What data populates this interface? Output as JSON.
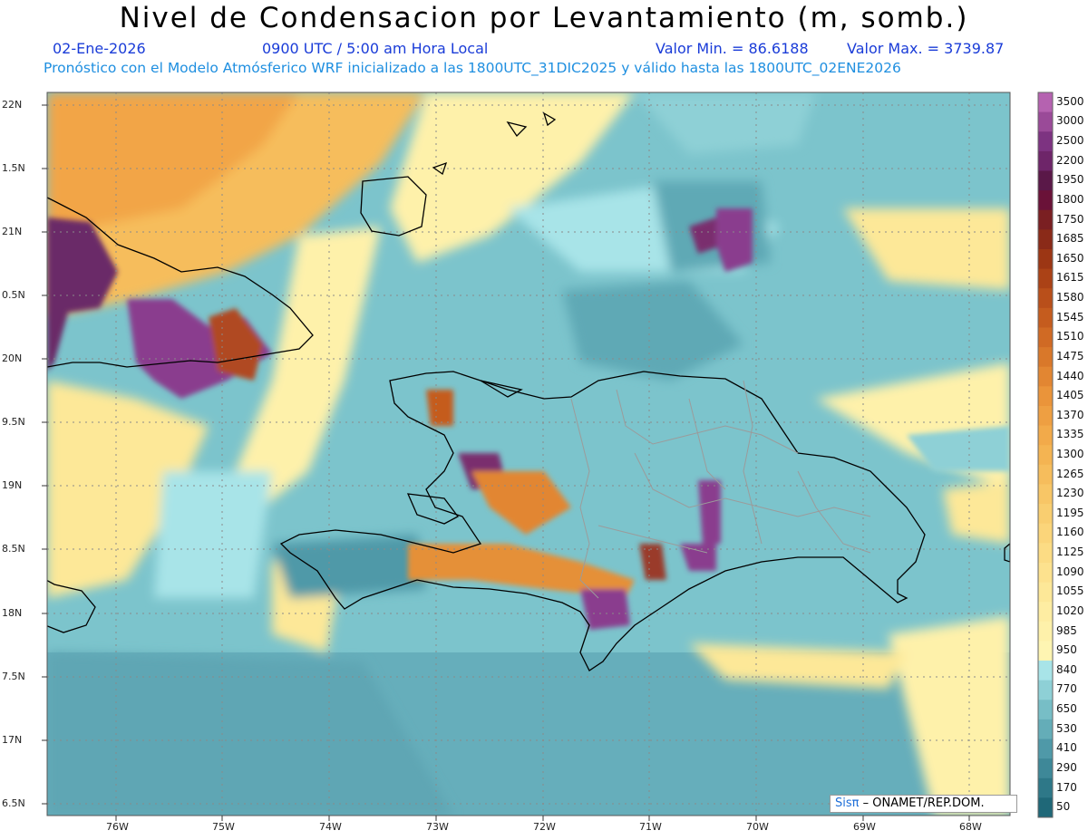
{
  "title": "Nivel de Condensacion por Levantamiento (m, somb.)",
  "date": "02-Ene-2026",
  "time": "0900 UTC / 5:00 am Hora Local",
  "min_label": "Valor Min. = 86.6188",
  "max_label": "Valor Max. = 3739.87",
  "forecast_info": "Pronóstico con el Modelo Atmósferico WRF inicializado a las 1800UTC_31DIC2025 y válido hasta las  1800UTC_02ENE2026",
  "lat_labels": [
    "22N",
    "1.5N",
    "21N",
    "0.5N",
    "20N",
    "9.5N",
    "19N",
    "8.5N",
    "18N",
    "7.5N",
    "17N",
    "6.5N"
  ],
  "lon_labels": [
    "76W",
    "75W",
    "74W",
    "73W",
    "72W",
    "71W",
    "70W",
    "69W",
    "68W"
  ],
  "colorbar": {
    "labels": [
      "3500",
      "3000",
      "2500",
      "2200",
      "1950",
      "1800",
      "1750",
      "1685",
      "1650",
      "1615",
      "1580",
      "1545",
      "1510",
      "1475",
      "1440",
      "1405",
      "1370",
      "1335",
      "1300",
      "1265",
      "1230",
      "1195",
      "1160",
      "1125",
      "1090",
      "1055",
      "1020",
      "985",
      "950",
      "840",
      "770",
      "650",
      "530",
      "410",
      "290",
      "170",
      "50"
    ],
    "colors": [
      "#b562b0",
      "#9a4a98",
      "#7d3381",
      "#6e2569",
      "#5a1848",
      "#6a1238",
      "#7a1f22",
      "#8a2a18",
      "#9c3614",
      "#ab4216",
      "#b94f1a",
      "#c55c1e",
      "#d06a24",
      "#d9782a",
      "#e28632",
      "#ea943a",
      "#ee9f42",
      "#f2aa4a",
      "#f4b452",
      "#f6bd5c",
      "#f8c666",
      "#f9ce70",
      "#fbd57a",
      "#fcdc84",
      "#fde28e",
      "#fde898",
      "#feeda2",
      "#fef1aa",
      "#fef5b2",
      "#a8e4e8",
      "#8ed0d6",
      "#77bec6",
      "#64adb8",
      "#4f99a8",
      "#3e8898",
      "#2e7888",
      "#1f6878"
    ]
  },
  "credit": {
    "brand": "Sisπ",
    "text": " – ONAMET/REP.DOM."
  }
}
